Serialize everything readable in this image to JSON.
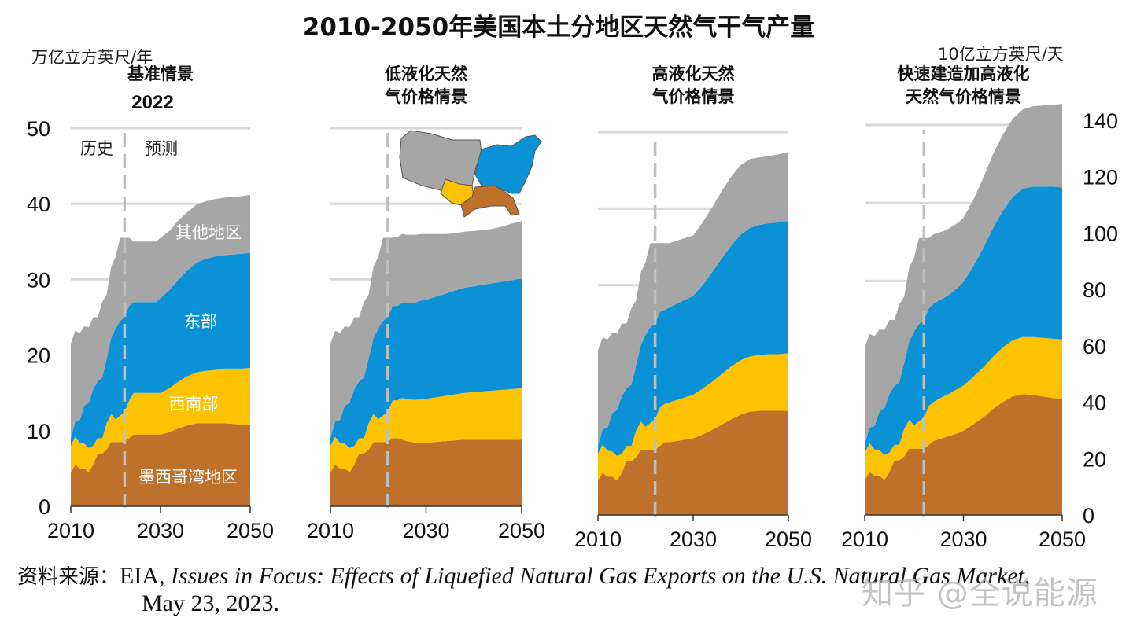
{
  "colors": {
    "other": "#a6a6a6",
    "east": "#0b91d6",
    "southwest": "#fdc300",
    "gulf": "#bd712a",
    "grid": "#d9d9d9",
    "divider": "#bfbfbf",
    "label_white": "#ffffff"
  },
  "chart_data": {
    "type": "area",
    "title": "2010-2050年美国本土分地区天然气干气产量",
    "left_unit": "万亿立方英尺/年",
    "right_unit": "10亿立方英尺/天",
    "left_ylim": [
      0,
      50
    ],
    "left_yticks": [
      "0",
      "10",
      "20",
      "30",
      "40",
      "50"
    ],
    "right_ylim": [
      0,
      140
    ],
    "right_yticks": [
      "0",
      "20",
      "40",
      "60",
      "80",
      "100",
      "120",
      "140"
    ],
    "xlim": [
      2010,
      2050
    ],
    "xticks": [
      "2010",
      "2030",
      "2050"
    ],
    "history_label": "历史",
    "forecast_label": "预测",
    "divider_year": 2022,
    "series_order": [
      "墨西哥湾地区",
      "西南部",
      "东部",
      "其他地区"
    ],
    "region_labels": {
      "other": "其他地区",
      "east": "东部",
      "southwest": "西南部",
      "gulf": "墨西哥湾地区"
    },
    "x": [
      2010,
      2011,
      2012,
      2013,
      2014,
      2015,
      2016,
      2017,
      2018,
      2019,
      2020,
      2021,
      2022,
      2023,
      2024,
      2025,
      2026,
      2027,
      2028,
      2029,
      2030,
      2032,
      2034,
      2036,
      2038,
      2040,
      2042,
      2044,
      2046,
      2048,
      2050
    ],
    "panels": [
      {
        "name": "基准情景",
        "subtitle": "2022",
        "series": [
          {
            "name": "墨西哥湾地区",
            "values": [
              4.5,
              5.5,
              5.0,
              5.0,
              4.5,
              5.5,
              7.0,
              7.0,
              7.5,
              8.5,
              8.5,
              8.5,
              8.5,
              9.0,
              9.5,
              9.5,
              9.5,
              9.5,
              9.5,
              9.5,
              9.5,
              9.8,
              10.3,
              10.7,
              11.0,
              11.0,
              11.0,
              11.0,
              10.9,
              10.8,
              10.8
            ]
          },
          {
            "name": "西南部",
            "values": [
              3.5,
              3.7,
              3.4,
              3.3,
              3.2,
              2.5,
              2.0,
              2.0,
              3.5,
              3.7,
              3.0,
              3.5,
              4.0,
              5.0,
              5.5,
              5.5,
              5.5,
              5.5,
              5.5,
              5.5,
              5.5,
              5.8,
              6.2,
              6.5,
              6.7,
              6.9,
              7.0,
              7.2,
              7.3,
              7.4,
              7.5
            ]
          },
          {
            "name": "东部",
            "values": [
              1.0,
              2.0,
              3.0,
              5.0,
              6.0,
              7.5,
              7.5,
              8.0,
              8.5,
              10.0,
              12.0,
              12.5,
              12.5,
              12.5,
              12.0,
              12.0,
              12.0,
              12.0,
              12.0,
              12.0,
              12.5,
              13.0,
              13.5,
              14.0,
              14.5,
              14.8,
              15.0,
              15.0,
              15.1,
              15.2,
              15.2
            ]
          },
          {
            "name": "其他地区",
            "values": [
              12.5,
              12.0,
              11.5,
              10.5,
              10.0,
              9.5,
              8.5,
              10.0,
              8.5,
              9.5,
              9.5,
              11.0,
              10.5,
              9.0,
              8.0,
              8.0,
              8.0,
              8.0,
              8.0,
              8.0,
              8.0,
              7.8,
              7.8,
              7.7,
              7.7,
              7.6,
              7.6,
              7.6,
              7.6,
              7.6,
              7.7
            ]
          }
        ]
      },
      {
        "name": "低液化天然\n气价格情景",
        "subtitle": "",
        "series": [
          {
            "name": "墨西哥湾地区",
            "values": [
              4.5,
              5.5,
              5.0,
              5.0,
              4.5,
              5.5,
              7.0,
              7.0,
              7.5,
              8.5,
              8.5,
              8.5,
              8.5,
              9.0,
              9.0,
              8.8,
              8.6,
              8.5,
              8.4,
              8.4,
              8.4,
              8.5,
              8.6,
              8.7,
              8.8,
              8.8,
              8.8,
              8.8,
              8.8,
              8.8,
              8.8
            ]
          },
          {
            "name": "西南部",
            "values": [
              3.5,
              3.7,
              3.4,
              3.3,
              3.2,
              2.5,
              2.0,
              2.0,
              3.5,
              3.7,
              3.0,
              3.5,
              4.0,
              5.0,
              5.0,
              5.5,
              5.6,
              5.6,
              5.7,
              5.8,
              5.8,
              5.9,
              6.0,
              6.1,
              6.2,
              6.3,
              6.4,
              6.5,
              6.6,
              6.7,
              6.8
            ]
          },
          {
            "name": "东部",
            "values": [
              1.0,
              2.0,
              3.0,
              5.0,
              6.0,
              7.5,
              7.5,
              8.0,
              8.5,
              10.0,
              12.0,
              12.5,
              12.5,
              12.5,
              12.5,
              12.6,
              12.7,
              12.8,
              12.9,
              13.0,
              13.1,
              13.3,
              13.5,
              13.7,
              13.9,
              14.0,
              14.1,
              14.2,
              14.3,
              14.4,
              14.5
            ]
          },
          {
            "name": "其他地区",
            "values": [
              12.5,
              12.0,
              11.5,
              10.5,
              10.0,
              9.5,
              8.5,
              10.0,
              8.5,
              9.5,
              9.5,
              11.0,
              10.5,
              9.0,
              9.1,
              9.1,
              9.0,
              9.0,
              8.9,
              8.8,
              8.7,
              8.3,
              7.9,
              7.6,
              7.4,
              7.3,
              7.2,
              7.2,
              7.3,
              7.5,
              7.6
            ]
          }
        ]
      },
      {
        "name": "高液化天然\n气价格情景",
        "subtitle": "",
        "series": [
          {
            "name": "墨西哥湾地区",
            "values": [
              4.5,
              5.5,
              5.0,
              5.0,
              4.5,
              5.5,
              7.0,
              7.0,
              7.5,
              8.5,
              8.5,
              8.5,
              8.5,
              9.0,
              9.5,
              9.5,
              9.6,
              9.7,
              9.8,
              9.9,
              10.0,
              10.5,
              11.1,
              11.8,
              12.5,
              13.1,
              13.5,
              13.6,
              13.6,
              13.6,
              13.6
            ]
          },
          {
            "name": "西南部",
            "values": [
              3.5,
              3.7,
              3.4,
              3.3,
              3.2,
              2.5,
              2.0,
              2.0,
              3.5,
              3.7,
              3.0,
              3.5,
              4.0,
              5.0,
              5.0,
              5.2,
              5.3,
              5.4,
              5.5,
              5.6,
              5.7,
              6.0,
              6.3,
              6.6,
              6.9,
              7.1,
              7.2,
              7.3,
              7.4,
              7.4,
              7.5
            ]
          },
          {
            "name": "东部",
            "values": [
              1.0,
              2.0,
              3.0,
              5.0,
              6.0,
              7.5,
              7.5,
              8.0,
              8.5,
              10.0,
              12.0,
              12.5,
              12.5,
              12.5,
              12.3,
              12.4,
              12.5,
              12.6,
              12.7,
              12.8,
              12.9,
              13.5,
              14.3,
              15.1,
              15.8,
              16.4,
              16.8,
              17.0,
              17.1,
              17.2,
              17.3
            ]
          },
          {
            "name": "其他地区",
            "values": [
              12.5,
              12.0,
              11.5,
              10.5,
              10.0,
              9.5,
              8.5,
              10.0,
              8.5,
              9.5,
              9.5,
              11.0,
              10.5,
              9.0,
              8.7,
              8.4,
              8.3,
              8.2,
              8.1,
              8.0,
              7.9,
              8.2,
              8.5,
              8.8,
              9.0,
              9.1,
              9.0,
              8.8,
              8.8,
              8.9,
              9.0
            ]
          }
        ]
      },
      {
        "name": "快速建造加高液化\n天然气价格情景",
        "subtitle": "",
        "series": [
          {
            "name": "墨西哥湾地区",
            "values": [
              4.5,
              5.5,
              5.0,
              5.0,
              4.5,
              5.5,
              7.0,
              7.0,
              7.5,
              8.5,
              8.5,
              8.5,
              8.5,
              9.0,
              9.5,
              9.7,
              9.9,
              10.1,
              10.3,
              10.5,
              10.8,
              11.6,
              12.5,
              13.6,
              14.5,
              15.2,
              15.5,
              15.4,
              15.2,
              15.0,
              14.9
            ]
          },
          {
            "name": "西南部",
            "values": [
              3.5,
              3.7,
              3.4,
              3.3,
              3.2,
              2.5,
              2.0,
              2.0,
              3.5,
              3.7,
              3.0,
              3.5,
              4.0,
              5.0,
              5.0,
              5.2,
              5.3,
              5.4,
              5.6,
              5.7,
              5.8,
              6.1,
              6.4,
              6.7,
              7.0,
              7.2,
              7.3,
              7.4,
              7.5,
              7.6,
              7.6
            ]
          },
          {
            "name": "东部",
            "values": [
              1.0,
              2.0,
              3.0,
              5.0,
              6.0,
              7.5,
              7.5,
              8.0,
              8.5,
              10.0,
              12.0,
              12.5,
              12.5,
              12.5,
              12.6,
              12.6,
              12.6,
              12.7,
              12.8,
              13.0,
              13.3,
              14.2,
              15.3,
              16.5,
              17.5,
              18.4,
              19.0,
              19.3,
              19.4,
              19.5,
              19.5
            ]
          },
          {
            "name": "其他地区",
            "values": [
              12.5,
              12.0,
              11.5,
              10.5,
              10.0,
              9.5,
              8.5,
              10.0,
              8.5,
              9.5,
              9.5,
              11.0,
              10.5,
              9.0,
              8.9,
              8.7,
              8.6,
              8.5,
              8.4,
              8.3,
              8.2,
              8.5,
              9.0,
              9.5,
              9.8,
              10.0,
              10.2,
              10.3,
              10.4,
              10.5,
              10.7
            ]
          }
        ]
      }
    ]
  },
  "source": {
    "label": "资料来源：",
    "org": "EIA, ",
    "title": "Issues in Focus: Effects of Liquefied Natural Gas Exports on the U.S. Natural Gas Market",
    "tail": ",",
    "date": "May 23, 2023."
  },
  "watermark": "知乎 @全说能源"
}
